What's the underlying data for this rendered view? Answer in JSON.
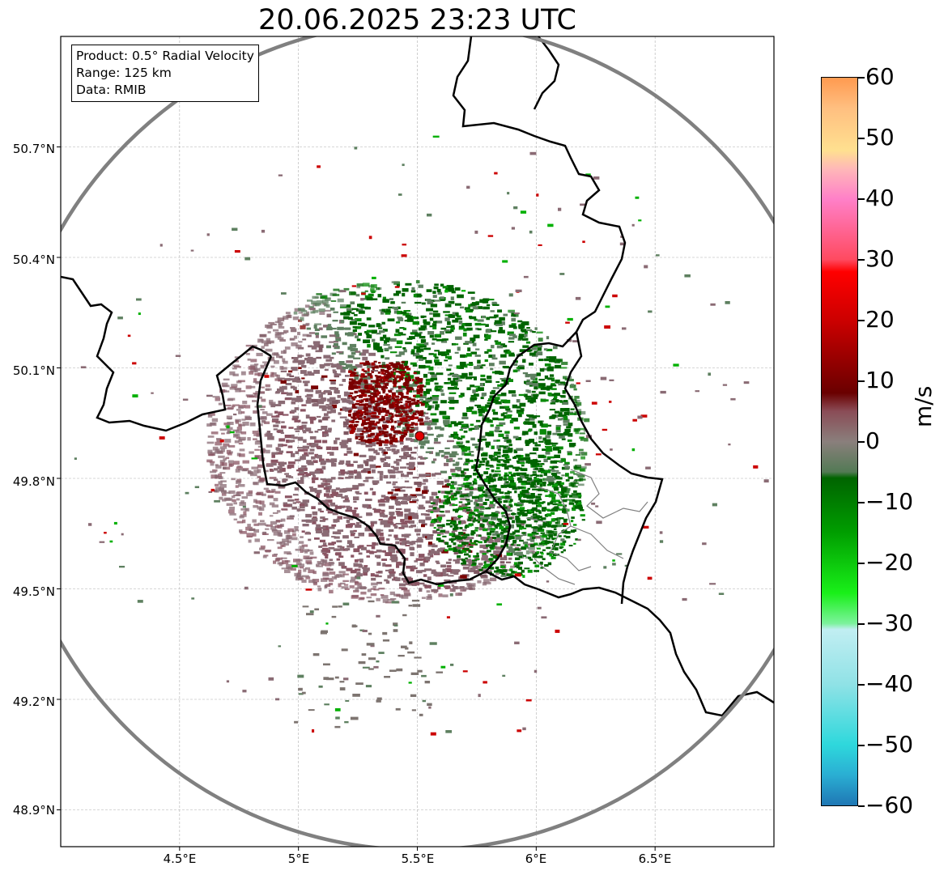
{
  "title": "20.06.2025 23:23 UTC",
  "info": {
    "product": "Product: 0.5° Radial Velocity",
    "range": "Range: 125 km",
    "data": "Data: RMIB"
  },
  "map": {
    "lon_min": 4.0,
    "lon_max": 7.0,
    "lat_min": 48.8,
    "lat_max": 51.0,
    "radar_site": {
      "lon": 5.51,
      "lat": 49.915
    },
    "range_km": 125,
    "lat_ticks": [
      "50.7°N",
      "50.4°N",
      "50.1°N",
      "49.8°N",
      "49.5°N",
      "49.2°N",
      "48.9°N"
    ],
    "lon_ticks": [
      "4.5°E",
      "5°E",
      "5.5°E",
      "6°E",
      "6.5°E"
    ],
    "colors": {
      "approach": "#006400",
      "recede": "#7a0000",
      "neutral_recede": "#8a6b74",
      "neutral_approach": "#5e8060",
      "range_ring": "#808080",
      "border": "#000000",
      "grid": "#b0b0b0"
    }
  },
  "colorbar": {
    "unit": "m/s",
    "min": -60,
    "max": 60,
    "ticks": [
      "60",
      "50",
      "40",
      "30",
      "20",
      "10",
      "0",
      "−10",
      "−20",
      "−30",
      "−40",
      "−50",
      "−60"
    ],
    "stops": [
      {
        "v": -60,
        "c": "#1f77b4"
      },
      {
        "v": -55,
        "c": "#2aaed3"
      },
      {
        "v": -50,
        "c": "#2ed8dc"
      },
      {
        "v": -40,
        "c": "#90e2e6"
      },
      {
        "v": -31,
        "c": "#c1eef2"
      },
      {
        "v": -30,
        "c": "#7cf29c"
      },
      {
        "v": -25,
        "c": "#19f019"
      },
      {
        "v": -15,
        "c": "#009e00"
      },
      {
        "v": -6,
        "c": "#006400"
      },
      {
        "v": -5,
        "c": "#537a55"
      },
      {
        "v": 0,
        "c": "#8a7f7c"
      },
      {
        "v": 5,
        "c": "#8a4c56"
      },
      {
        "v": 8,
        "c": "#6a0000"
      },
      {
        "v": 20,
        "c": "#cc0000"
      },
      {
        "v": 28,
        "c": "#ff0000"
      },
      {
        "v": 30,
        "c": "#ff4a60"
      },
      {
        "v": 40,
        "c": "#ff80c8"
      },
      {
        "v": 45,
        "c": "#ffb8b8"
      },
      {
        "v": 48,
        "c": "#ffe090"
      },
      {
        "v": 55,
        "c": "#ffbf80"
      },
      {
        "v": 60,
        "c": "#ff9a50"
      }
    ]
  }
}
